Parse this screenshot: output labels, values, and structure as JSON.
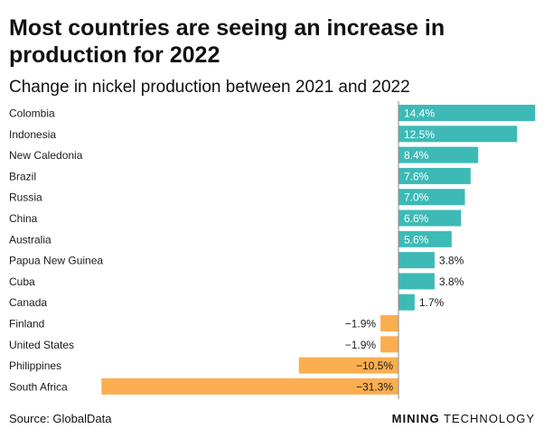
{
  "title": "Most countries are seeing an increase in production for 2022",
  "subtitle": "Change in nickel production between 2021 and 2022",
  "source": "Source: GlobalData",
  "logo": {
    "bold": "MINING",
    "light": " TECHNOLOGY"
  },
  "colors": {
    "positive": "#3dbab6",
    "negative": "#fbae4f",
    "axis": "#8a8a8a",
    "text": "#1a1a1a"
  },
  "chart_data": {
    "type": "bar",
    "orientation": "horizontal",
    "categories": [
      "Colombia",
      "Indonesia",
      "New Caledonia",
      "Brazil",
      "Russia",
      "China",
      "Australia",
      "Papua New Guinea",
      "Cuba",
      "Canada",
      "Finland",
      "United States",
      "Philippines",
      "South Africa"
    ],
    "values": [
      14.4,
      12.5,
      8.4,
      7.6,
      7.0,
      6.6,
      5.6,
      3.8,
      3.8,
      1.7,
      -1.9,
      -1.9,
      -10.5,
      -31.3
    ],
    "labels": [
      "14.4%",
      "12.5%",
      "8.4%",
      "7.6%",
      "7.0%",
      "6.6%",
      "5.6%",
      "3.8%",
      "3.8%",
      "1.7%",
      "−1.9%",
      "−1.9%",
      "−10.5%",
      "−31.3%"
    ],
    "title": "Change in nickel production between 2021 and 2022",
    "xlabel": "",
    "ylabel": "",
    "unit": "%"
  }
}
